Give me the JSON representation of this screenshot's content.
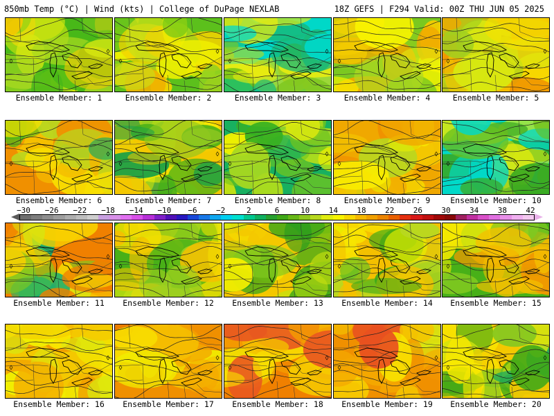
{
  "header": {
    "title_left": "850mb Temp (°C) | Wind (kts) | College of DuPage NEXLAB",
    "title_right": "18Z GEFS | F294 Valid: 00Z THU JUN 05 2025"
  },
  "panels": [
    {
      "label": "Ensemble Member: 1",
      "palette": [
        "#48b818",
        "#7ac820",
        "#a8d820",
        "#d8e810",
        "#f0f000",
        "#f4c800"
      ]
    },
    {
      "label": "Ensemble Member: 2",
      "palette": [
        "#5cc01c",
        "#90d020",
        "#c8e018",
        "#f0f000",
        "#f4d200",
        "#f0b000"
      ]
    },
    {
      "label": "Ensemble Member: 3",
      "palette": [
        "#00d8c8",
        "#18b878",
        "#48b018",
        "#80c820",
        "#b8d820",
        "#e8ec10"
      ]
    },
    {
      "label": "Ensemble Member: 4",
      "palette": [
        "#7ac820",
        "#b0d820",
        "#e0ec10",
        "#f8f400",
        "#f4cc00",
        "#f0a800"
      ]
    },
    {
      "label": "Ensemble Member: 5",
      "palette": [
        "#f0a800",
        "#f4c000",
        "#f8e000",
        "#d8e810",
        "#a0d020",
        "#f09000"
      ]
    },
    {
      "label": "Ensemble Member: 6",
      "palette": [
        "#f09000",
        "#f4b400",
        "#f8e000",
        "#b8d820",
        "#48b818",
        "#18a860"
      ]
    },
    {
      "label": "Ensemble Member: 7",
      "palette": [
        "#f4c800",
        "#f8f000",
        "#d0e410",
        "#90c820",
        "#48b018",
        "#18a048"
      ]
    },
    {
      "label": "Ensemble Member: 8",
      "palette": [
        "#18b060",
        "#38b020",
        "#70c420",
        "#a8d820",
        "#d8e810",
        "#f0f000"
      ]
    },
    {
      "label": "Ensemble Member: 9",
      "palette": [
        "#f0a800",
        "#f4c800",
        "#f8ec00",
        "#e8f000",
        "#b8d820",
        "#f09000"
      ]
    },
    {
      "label": "Ensemble Member: 10",
      "palette": [
        "#00d8c8",
        "#18b070",
        "#38a820",
        "#68c020",
        "#a0d020",
        "#d8e810"
      ]
    },
    {
      "label": "Ensemble Member: 11",
      "palette": [
        "#f08000",
        "#f4a800",
        "#f8d000",
        "#d8e410",
        "#80c820",
        "#18b070"
      ]
    },
    {
      "label": "Ensemble Member: 12",
      "palette": [
        "#48b018",
        "#70c020",
        "#a0d020",
        "#d8e810",
        "#f4e000",
        "#f4c000"
      ]
    },
    {
      "label": "Ensemble Member: 13",
      "palette": [
        "#f4c800",
        "#f8f000",
        "#c8e010",
        "#80c820",
        "#40a818",
        "#209820"
      ]
    },
    {
      "label": "Ensemble Member: 14",
      "palette": [
        "#f4c000",
        "#f8e400",
        "#e8f000",
        "#b8d820",
        "#70c020",
        "#38a818"
      ]
    },
    {
      "label": "Ensemble Member: 15",
      "palette": [
        "#48b018",
        "#80c820",
        "#c8e010",
        "#f4e800",
        "#f4c000",
        "#f09800"
      ]
    },
    {
      "label": "Ensemble Member: 16",
      "palette": [
        "#f4c800",
        "#f8e800",
        "#f0f000",
        "#d8e810",
        "#f4b000",
        "#f09800"
      ]
    },
    {
      "label": "Ensemble Member: 17",
      "palette": [
        "#f09000",
        "#f4a800",
        "#f4c000",
        "#f8dc00",
        "#f0f000",
        "#e87800"
      ]
    },
    {
      "label": "Ensemble Member: 18",
      "palette": [
        "#f08000",
        "#f4a000",
        "#f4c000",
        "#f8e000",
        "#e85820",
        "#f0f000"
      ]
    },
    {
      "label": "Ensemble Member: 19",
      "palette": [
        "#f09000",
        "#f4a800",
        "#f4c400",
        "#e85020",
        "#f8e400",
        "#d8e810"
      ]
    },
    {
      "label": "Ensemble Member: 20",
      "palette": [
        "#f4c800",
        "#f8e800",
        "#d0e410",
        "#88c820",
        "#40a818",
        "#18a860"
      ]
    }
  ],
  "colorbar": {
    "tick_labels": [
      "−30",
      "−26",
      "−22",
      "−18",
      "−14",
      "−10",
      "−6",
      "−2",
      "2",
      "6",
      "10",
      "14",
      "18",
      "22",
      "26",
      "30",
      "34",
      "38",
      "42"
    ],
    "colors": [
      "#6e6e6e",
      "#7e7e7e",
      "#8e8e8e",
      "#9e9e9e",
      "#aeaeae",
      "#bebebe",
      "#cecece",
      "#c8a0e0",
      "#d890e8",
      "#e070f0",
      "#d850e8",
      "#b830d8",
      "#8020c8",
      "#5010b8",
      "#2818c0",
      "#1848d8",
      "#1878e8",
      "#10a8f0",
      "#00d0f0",
      "#00e0d0",
      "#00c890",
      "#10b060",
      "#28a030",
      "#40a818",
      "#68b818",
      "#90c820",
      "#b8d820",
      "#e0ec10",
      "#f8f400",
      "#f8d800",
      "#f4b800",
      "#f0a000",
      "#ec8400",
      "#e86000",
      "#e43010",
      "#d81818",
      "#c01010",
      "#a00808",
      "#880808",
      "#a02060",
      "#c030a0",
      "#d850c8",
      "#e070e0",
      "#e890e8",
      "#f0b0f0",
      "#f4c8f0"
    ]
  }
}
